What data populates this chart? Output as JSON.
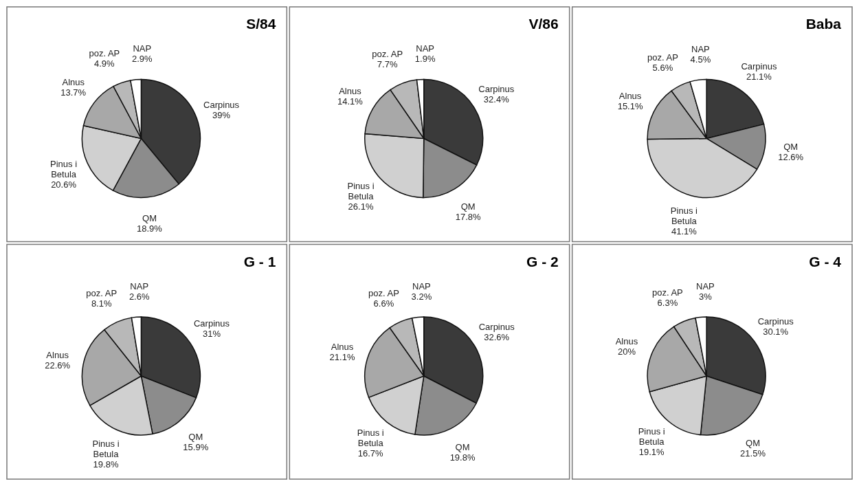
{
  "chart_data": [
    {
      "type": "pie",
      "title": "S/84",
      "categories": [
        "Carpinus",
        "QM",
        "Pinus i Betula",
        "Alnus",
        "poz. AP",
        "NAP"
      ],
      "values": [
        39,
        18.9,
        20.6,
        13.7,
        4.9,
        2.9
      ],
      "value_labels": [
        "39%",
        "18.9%",
        "20.6%",
        "13.7%",
        "4.9%",
        "2.9%"
      ],
      "colors": [
        "#3a3a3a",
        "#8c8c8c",
        "#d0d0d0",
        "#a8a8a8",
        "#b8b8b8",
        "#ffffff"
      ]
    },
    {
      "type": "pie",
      "title": "V/86",
      "categories": [
        "Carpinus",
        "QM",
        "Pinus i Betula",
        "Alnus",
        "poz. AP",
        "NAP"
      ],
      "values": [
        32.4,
        17.8,
        26.1,
        14.1,
        7.7,
        1.9
      ],
      "value_labels": [
        "32.4%",
        "17.8%",
        "26.1%",
        "14.1%",
        "7.7%",
        "1.9%"
      ],
      "colors": [
        "#3a3a3a",
        "#8c8c8c",
        "#d0d0d0",
        "#a8a8a8",
        "#b8b8b8",
        "#ffffff"
      ]
    },
    {
      "type": "pie",
      "title": "Baba",
      "categories": [
        "Carpinus",
        "QM",
        "Pinus i Betula",
        "Alnus",
        "poz. AP",
        "NAP"
      ],
      "values": [
        21.1,
        12.6,
        41.1,
        15.1,
        5.6,
        4.5
      ],
      "value_labels": [
        "21.1%",
        "12.6%",
        "41.1%",
        "15.1%",
        "5.6%",
        "4.5%"
      ],
      "colors": [
        "#3a3a3a",
        "#8c8c8c",
        "#d0d0d0",
        "#a8a8a8",
        "#b8b8b8",
        "#ffffff"
      ]
    },
    {
      "type": "pie",
      "title": "G - 1",
      "categories": [
        "Carpinus",
        "QM",
        "Pinus i Betula",
        "Alnus",
        "poz. AP",
        "NAP"
      ],
      "values": [
        31,
        15.9,
        19.8,
        22.6,
        8.1,
        2.6
      ],
      "value_labels": [
        "31%",
        "15.9%",
        "19.8%",
        "22.6%",
        "8.1%",
        "2.6%"
      ],
      "colors": [
        "#3a3a3a",
        "#8c8c8c",
        "#d0d0d0",
        "#a8a8a8",
        "#b8b8b8",
        "#ffffff"
      ]
    },
    {
      "type": "pie",
      "title": "G - 2",
      "categories": [
        "Carpinus",
        "QM",
        "Pinus i Betula",
        "Alnus",
        "poz. AP",
        "NAP"
      ],
      "values": [
        32.6,
        19.8,
        16.7,
        21.1,
        6.6,
        3.2
      ],
      "value_labels": [
        "32.6%",
        "19.8%",
        "16.7%",
        "21.1%",
        "6.6%",
        "3.2%"
      ],
      "colors": [
        "#3a3a3a",
        "#8c8c8c",
        "#d0d0d0",
        "#a8a8a8",
        "#b8b8b8",
        "#ffffff"
      ]
    },
    {
      "type": "pie",
      "title": "G - 4",
      "categories": [
        "Carpinus",
        "QM",
        "Pinus i Betula",
        "Alnus",
        "poz. AP",
        "NAP"
      ],
      "values": [
        30.1,
        21.5,
        19.1,
        20,
        6.3,
        3
      ],
      "value_labels": [
        "30.1%",
        "21.5%",
        "19.1%",
        "20%",
        "6.3%",
        "3%"
      ],
      "colors": [
        "#3a3a3a",
        "#8c8c8c",
        "#d0d0d0",
        "#a8a8a8",
        "#b8b8b8",
        "#ffffff"
      ]
    }
  ]
}
